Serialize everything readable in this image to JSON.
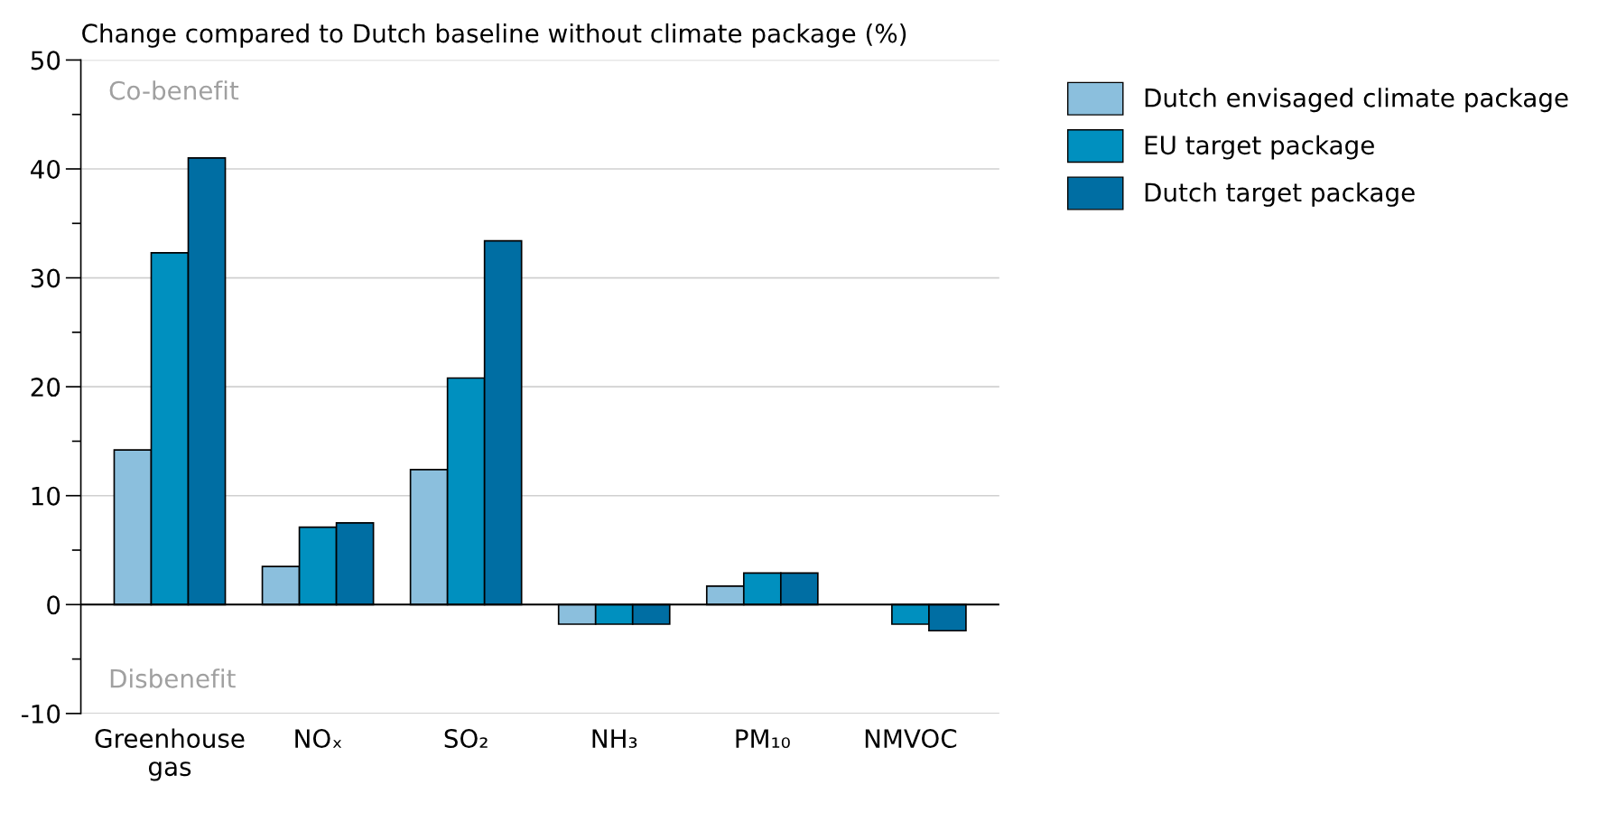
{
  "chart_data": {
    "type": "bar",
    "title": "Change compared to Dutch baseline without climate package (%)",
    "categories": [
      "Greenhouse\ngas",
      "NOₓ",
      "SO₂",
      "NH₃",
      "PM₁₀",
      "NMVOC"
    ],
    "series": [
      {
        "name": "Dutch envisaged climate package",
        "color": "#8bbfdd",
        "values": [
          14.2,
          3.5,
          12.4,
          -1.8,
          1.7,
          null
        ]
      },
      {
        "name": "EU target package",
        "color": "#0090bf",
        "values": [
          32.3,
          7.1,
          20.8,
          -1.8,
          2.9,
          -1.8
        ]
      },
      {
        "name": "Dutch target package",
        "color": "#006ea3",
        "values": [
          41,
          7.5,
          33.4,
          -1.8,
          2.9,
          -2.4
        ]
      }
    ],
    "ylim": [
      -10,
      50
    ],
    "yticks": [
      -10,
      {
        "value": -5,
        "label": null
      },
      0,
      {
        "value": 5,
        "label": null
      },
      10,
      {
        "value": 15,
        "label": null
      },
      20,
      {
        "value": 25,
        "label": null
      },
      30,
      {
        "value": 35,
        "label": null
      },
      40,
      {
        "value": 45,
        "label": null
      },
      50
    ],
    "grid": "y",
    "legend": "right",
    "annotations": [
      "Co-benefit",
      "Disbenefit"
    ]
  }
}
